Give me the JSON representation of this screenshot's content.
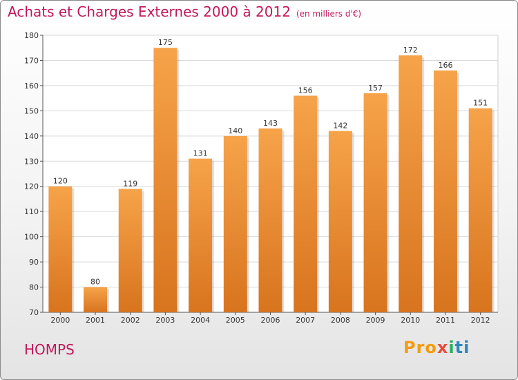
{
  "header": {
    "title": "Achats et Charges Externes 2000 à 2012",
    "subtitle": "(en milliers d'€)"
  },
  "footer": {
    "commune": "HOMPS",
    "brand": "Proxiti"
  },
  "colors": {
    "title": "#c2185b",
    "bar_top": "#f6a34a",
    "bar_bottom": "#d8741e"
  },
  "chart_data": {
    "type": "bar",
    "categories": [
      "2000",
      "2001",
      "2002",
      "2003",
      "2004",
      "2005",
      "2006",
      "2007",
      "2008",
      "2009",
      "2010",
      "2011",
      "2012"
    ],
    "values": [
      120,
      80,
      119,
      175,
      131,
      140,
      143,
      156,
      142,
      157,
      172,
      166,
      151
    ],
    "ylim": [
      70,
      180
    ],
    "yticks": [
      70,
      80,
      90,
      100,
      110,
      120,
      130,
      140,
      150,
      160,
      170,
      180
    ],
    "grid": true,
    "show_value_labels": true
  }
}
